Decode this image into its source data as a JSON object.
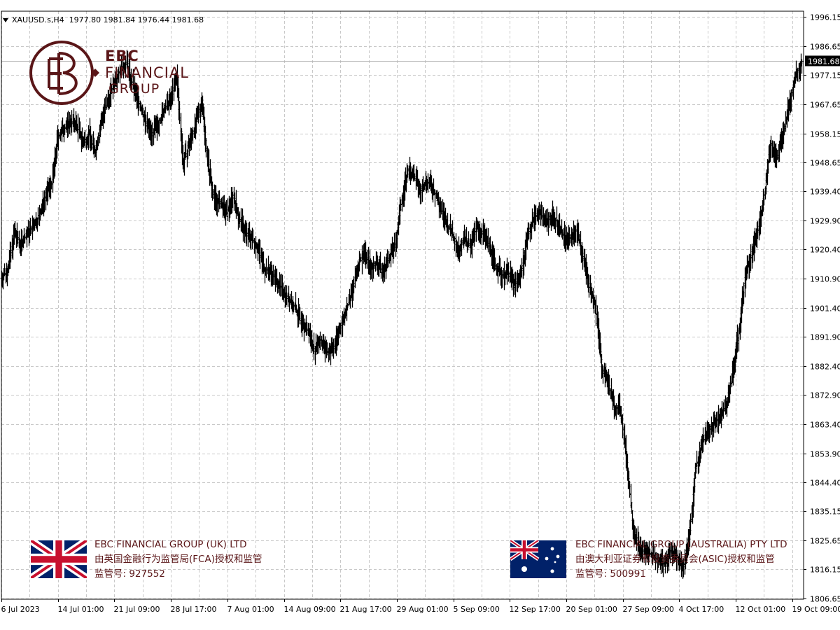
{
  "header": {
    "symbol": "XAUUSD.s,H4",
    "ohlc": "1977.80 1981.84 1976.44 1981.68"
  },
  "logo": {
    "line1": "EBC",
    "line2": "FINANCIAL",
    "line3": "GROUP",
    "icon": "ebc-monogram-icon"
  },
  "regulators": [
    {
      "flag": "uk-flag-icon",
      "name": "EBC FINANCIAL GROUP (UK) LTD",
      "authority": "由英国金融行为监管局(FCA)授权和监管",
      "license": "监管号: 927552"
    },
    {
      "flag": "australia-flag-icon",
      "name": "EBC FINANCIAL GROUP (AUSTRALIA) PTY LTD",
      "authority": "由澳大利亚证券和投资委员会(ASIC)授权和监管",
      "license": "监管号: 500991"
    }
  ],
  "colors": {
    "bars": "#000000",
    "grid": "#c8c8c8",
    "brand": "#5a1618",
    "price_line": "#b4b4b4"
  },
  "chart_data": {
    "type": "line",
    "title": "XAUUSD.s,H4",
    "style": "ohlc-bars",
    "grid": true,
    "current_price": 1981.68,
    "current_price_label": "1981.68",
    "ylim": [
      1806.65,
      1996.15
    ],
    "yticks": [
      "1996.15",
      "1986.65",
      "1977.15",
      "1967.65",
      "1958.15",
      "1948.65",
      "1939.40",
      "1929.90",
      "1920.40",
      "1910.90",
      "1901.40",
      "1891.90",
      "1882.40",
      "1872.90",
      "1863.40",
      "1853.90",
      "1844.40",
      "1835.15",
      "1825.65",
      "1816.15",
      "1806.65"
    ],
    "xticks": [
      "6 Jul 2023",
      "14 Jul 01:00",
      "21 Jul 09:00",
      "28 Jul 17:00",
      "7 Aug 01:00",
      "14 Aug 09:00",
      "21 Aug 17:00",
      "29 Aug 01:00",
      "5 Sep 09:00",
      "12 Sep 17:00",
      "20 Sep 01:00",
      "27 Sep 09:00",
      "4 Oct 17:00",
      "12 Oct 01:00",
      "19 Oct 09:00"
    ],
    "series": [
      {
        "x_start": "6 Jul 2023",
        "x_end": "19 Oct 09:00",
        "close": [
          1911,
          1914,
          1926,
          1922,
          1925,
          1928,
          1931,
          1938,
          1942,
          1957,
          1960,
          1962,
          1961,
          1955,
          1958,
          1952,
          1963,
          1969,
          1975,
          1979,
          1981,
          1973,
          1968,
          1962,
          1958,
          1961,
          1966,
          1969,
          1977,
          1948,
          1955,
          1961,
          1969,
          1948,
          1937,
          1935,
          1932,
          1938,
          1930,
          1926,
          1924,
          1921,
          1914,
          1913,
          1910,
          1907,
          1904,
          1901,
          1896,
          1894,
          1888,
          1891,
          1887,
          1888,
          1894,
          1900,
          1906,
          1915,
          1920,
          1914,
          1916,
          1913,
          1918,
          1922,
          1937,
          1946,
          1944,
          1939,
          1943,
          1940,
          1935,
          1929,
          1926,
          1920,
          1924,
          1921,
          1928,
          1925,
          1922,
          1915,
          1912,
          1913,
          1909,
          1912,
          1924,
          1930,
          1933,
          1929,
          1931,
          1929,
          1924,
          1924,
          1927,
          1918,
          1908,
          1902,
          1882,
          1877,
          1869,
          1868,
          1851,
          1830,
          1823,
          1822,
          1821,
          1819,
          1818,
          1822,
          1820,
          1817,
          1826,
          1849,
          1857,
          1861,
          1864,
          1866,
          1870,
          1881,
          1895,
          1913,
          1919,
          1927,
          1938,
          1955,
          1950,
          1958,
          1968,
          1977,
          1981.68
        ]
      }
    ]
  }
}
